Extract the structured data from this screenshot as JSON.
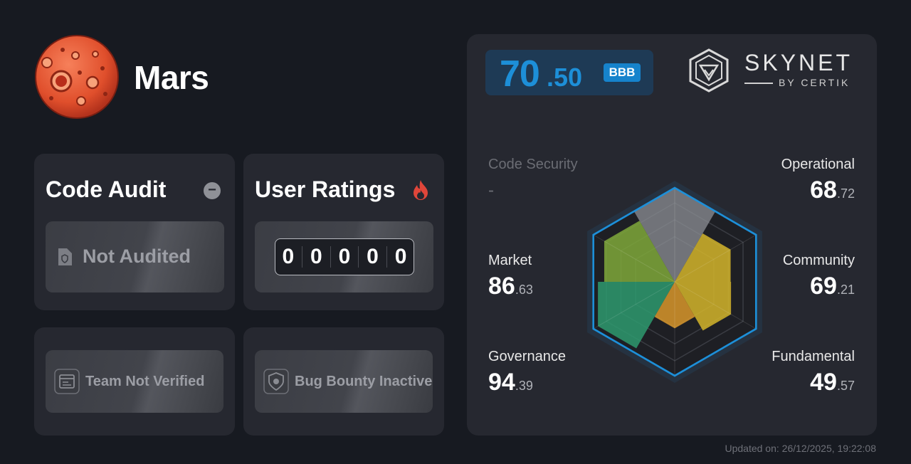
{
  "project": {
    "name": "Mars"
  },
  "code_audit": {
    "title": "Code Audit",
    "status": "Not Audited"
  },
  "user_ratings": {
    "title": "User Ratings",
    "digits": [
      "0",
      "0",
      "0",
      "0",
      "0"
    ]
  },
  "team": {
    "status": "Team Not Verified"
  },
  "bug_bounty": {
    "status": "Bug Bounty Inactive"
  },
  "skynet": {
    "score_int": "70",
    "score_dec": ".50",
    "grade": "BBB",
    "brand": "SKYNET",
    "brand_sub": "BY CERTIK",
    "metrics": {
      "code_security": {
        "label": "Code Security",
        "value": "-"
      },
      "operational": {
        "label": "Operational",
        "int": "68",
        "dec": ".72"
      },
      "market": {
        "label": "Market",
        "int": "86",
        "dec": ".63"
      },
      "community": {
        "label": "Community",
        "int": "69",
        "dec": ".21"
      },
      "governance": {
        "label": "Governance",
        "int": "94",
        "dec": ".39"
      },
      "fundamental": {
        "label": "Fundamental",
        "int": "49",
        "dec": ".57"
      }
    },
    "radar": {
      "operational": 68.72,
      "community": 69.21,
      "fundamental": 49.57,
      "governance": 94.39,
      "market": 86.63,
      "code_security": null
    }
  },
  "footer": {
    "updated": "Updated on: 26/12/2025, 19:22:08"
  },
  "colors": {
    "accent": "#1d8fd8",
    "grade_bg": "#1683cc",
    "background": "#171a21",
    "card": "#262830"
  }
}
